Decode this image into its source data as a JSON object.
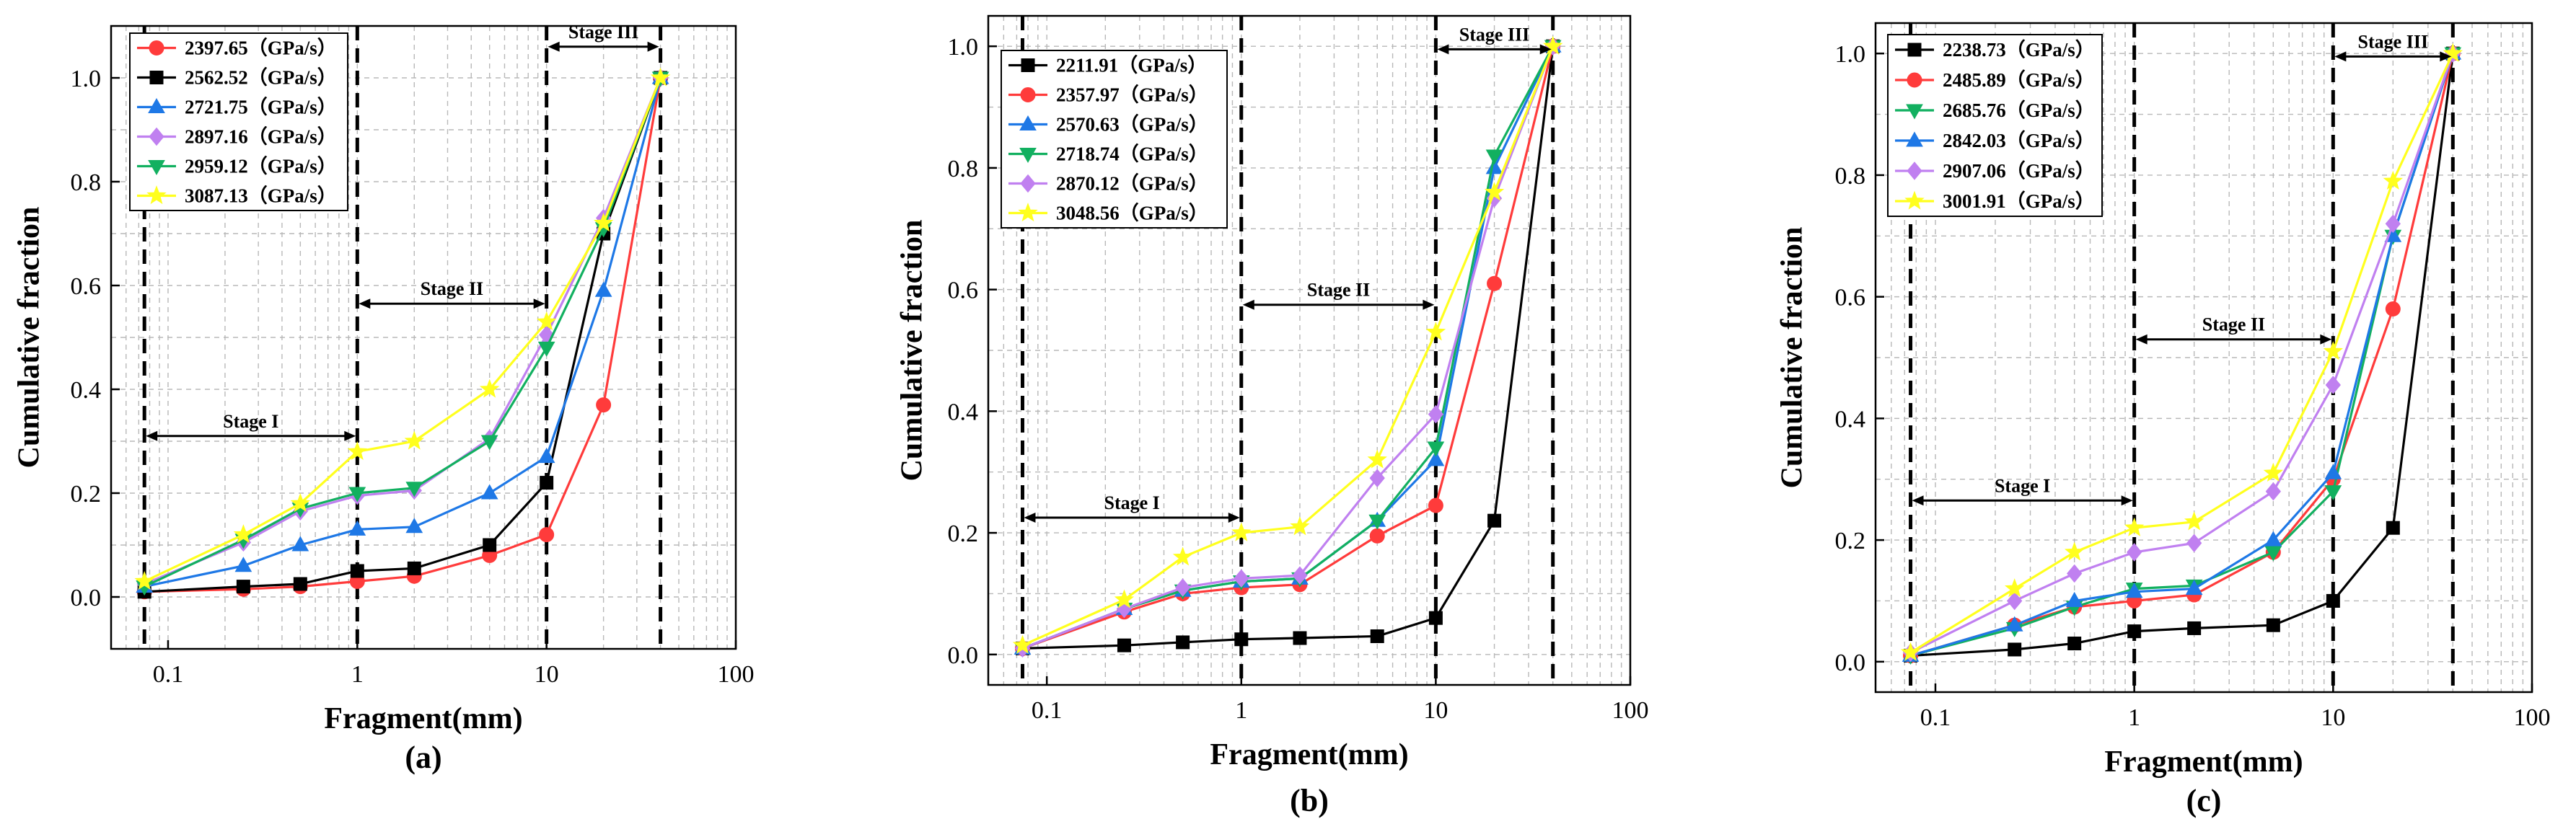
{
  "chart_data": [
    {
      "type": "line",
      "panel": "(a)",
      "xscale": "log",
      "xlim": [
        0.05,
        100
      ],
      "ylim": [
        -0.1,
        1.1
      ],
      "xticks": [
        0.1,
        1,
        10,
        100
      ],
      "xtick_labels": [
        "0.1",
        "1",
        "10",
        "100"
      ],
      "yticks": [
        0.0,
        0.2,
        0.4,
        0.6,
        0.8,
        1.0
      ],
      "ytick_labels": [
        "0.0",
        "0.2",
        "0.4",
        "0.6",
        "0.8",
        "1.0"
      ],
      "xlabel": "Fragment(mm)",
      "ylabel": "Cumulative fraction",
      "legend_position": "top-left",
      "x": [
        0.075,
        0.25,
        0.5,
        1,
        2,
        5,
        10,
        20,
        40
      ],
      "boundaries": [
        0.075,
        1,
        10,
        40
      ],
      "stages": [
        {
          "label": "Stage I",
          "from": 0.075,
          "to": 1,
          "y": 0.31
        },
        {
          "label": "Stage II",
          "from": 1,
          "to": 10,
          "y": 0.565
        },
        {
          "label": "Stage III",
          "from": 10,
          "to": 40,
          "y": 1.06
        }
      ],
      "series": [
        {
          "name": "2397.65（GPa/s）",
          "color": "#ff3b3b",
          "marker": "circle",
          "values": [
            0.01,
            0.015,
            0.02,
            0.03,
            0.04,
            0.08,
            0.12,
            0.37,
            1.0
          ]
        },
        {
          "name": "2562.52（GPa/s）",
          "color": "#000000",
          "marker": "square",
          "values": [
            0.01,
            0.02,
            0.025,
            0.05,
            0.055,
            0.1,
            0.22,
            0.7,
            1.0
          ]
        },
        {
          "name": "2721.75（GPa/s）",
          "color": "#1e78e6",
          "marker": "triangle-up",
          "values": [
            0.02,
            0.06,
            0.1,
            0.13,
            0.135,
            0.2,
            0.27,
            0.59,
            1.0
          ]
        },
        {
          "name": "2897.16（GPa/s）",
          "color": "#c080f0",
          "marker": "diamond",
          "values": [
            0.025,
            0.105,
            0.165,
            0.195,
            0.205,
            0.305,
            0.505,
            0.73,
            1.0
          ]
        },
        {
          "name": "2959.12（GPa/s）",
          "color": "#12b060",
          "marker": "triangle-down",
          "values": [
            0.02,
            0.11,
            0.17,
            0.2,
            0.21,
            0.3,
            0.48,
            0.71,
            1.0
          ]
        },
        {
          "name": "3087.13（GPa/s）",
          "color": "#ffff1e",
          "marker": "star",
          "values": [
            0.03,
            0.12,
            0.18,
            0.28,
            0.3,
            0.4,
            0.53,
            0.72,
            1.0
          ]
        }
      ]
    },
    {
      "type": "line",
      "panel": "(b)",
      "xscale": "log",
      "xlim": [
        0.05,
        100
      ],
      "ylim": [
        -0.05,
        1.05
      ],
      "xticks": [
        0.1,
        1,
        10,
        100
      ],
      "xtick_labels": [
        "0.1",
        "1",
        "10",
        "100"
      ],
      "yticks": [
        0.0,
        0.2,
        0.4,
        0.6,
        0.8,
        1.0
      ],
      "ytick_labels": [
        "0.0",
        "0.2",
        "0.4",
        "0.6",
        "0.8",
        "1.0"
      ],
      "xlabel": "Fragment(mm)",
      "ylabel": "Cumulative fraction",
      "legend_position": "top-left",
      "x": [
        0.075,
        0.25,
        0.5,
        1,
        2,
        5,
        10,
        20,
        40
      ],
      "boundaries": [
        0.075,
        1,
        10,
        40
      ],
      "stages": [
        {
          "label": "Stage I",
          "from": 0.075,
          "to": 1,
          "y": 0.225
        },
        {
          "label": "Stage II",
          "from": 1,
          "to": 10,
          "y": 0.575
        },
        {
          "label": "Stage III",
          "from": 10,
          "to": 40,
          "y": 0.995
        }
      ],
      "series": [
        {
          "name": "2211.91（GPa/s）",
          "color": "#000000",
          "marker": "square",
          "values": [
            0.01,
            0.015,
            0.02,
            0.025,
            0.027,
            0.03,
            0.06,
            0.22,
            1.0
          ]
        },
        {
          "name": "2357.97（GPa/s）",
          "color": "#ff3b3b",
          "marker": "circle",
          "values": [
            0.01,
            0.07,
            0.1,
            0.11,
            0.115,
            0.195,
            0.245,
            0.61,
            1.0
          ]
        },
        {
          "name": "2570.63（GPa/s）",
          "color": "#1e78e6",
          "marker": "triangle-up",
          "values": [
            0.01,
            0.075,
            0.105,
            0.12,
            0.125,
            0.22,
            0.32,
            0.8,
            1.0
          ]
        },
        {
          "name": "2718.74（GPa/s）",
          "color": "#12b060",
          "marker": "triangle-down",
          "values": [
            0.01,
            0.075,
            0.105,
            0.12,
            0.125,
            0.22,
            0.34,
            0.82,
            1.0
          ]
        },
        {
          "name": "2870.12（GPa/s）",
          "color": "#c080f0",
          "marker": "diamond",
          "values": [
            0.01,
            0.075,
            0.11,
            0.125,
            0.13,
            0.29,
            0.395,
            0.75,
            1.0
          ]
        },
        {
          "name": "3048.56（GPa/s）",
          "color": "#ffff1e",
          "marker": "star",
          "values": [
            0.015,
            0.09,
            0.16,
            0.2,
            0.21,
            0.32,
            0.53,
            0.76,
            1.0
          ]
        }
      ]
    },
    {
      "type": "line",
      "panel": "(c)",
      "xscale": "log",
      "xlim": [
        0.05,
        100
      ],
      "ylim": [
        -0.05,
        1.05
      ],
      "xticks": [
        0.1,
        1,
        10,
        100
      ],
      "xtick_labels": [
        "0.1",
        "1",
        "10",
        "100"
      ],
      "yticks": [
        0.0,
        0.2,
        0.4,
        0.6,
        0.8,
        1.0
      ],
      "ytick_labels": [
        "0.0",
        "0.2",
        "0.4",
        "0.6",
        "0.8",
        "1.0"
      ],
      "xlabel": "Fragment(mm)",
      "ylabel": "Cumulative fraction",
      "legend_position": "top-left",
      "x": [
        0.075,
        0.25,
        0.5,
        1,
        2,
        5,
        10,
        20,
        40
      ],
      "boundaries": [
        0.075,
        1,
        10,
        40
      ],
      "stages": [
        {
          "label": "Stage I",
          "from": 0.075,
          "to": 1,
          "y": 0.265
        },
        {
          "label": "Stage II",
          "from": 1,
          "to": 10,
          "y": 0.53
        },
        {
          "label": "Stage III",
          "from": 10,
          "to": 40,
          "y": 0.995
        }
      ],
      "series": [
        {
          "name": "2238.73（GPa/s）",
          "color": "#000000",
          "marker": "square",
          "values": [
            0.01,
            0.02,
            0.03,
            0.05,
            0.055,
            0.06,
            0.1,
            0.22,
            1.0
          ]
        },
        {
          "name": "2485.89（GPa/s）",
          "color": "#ff3b3b",
          "marker": "circle",
          "values": [
            0.01,
            0.06,
            0.09,
            0.1,
            0.11,
            0.18,
            0.3,
            0.58,
            1.0
          ]
        },
        {
          "name": "2685.76（GPa/s）",
          "color": "#12b060",
          "marker": "triangle-down",
          "values": [
            0.01,
            0.055,
            0.09,
            0.12,
            0.125,
            0.18,
            0.28,
            0.7,
            1.0
          ]
        },
        {
          "name": "2842.03（GPa/s）",
          "color": "#1e78e6",
          "marker": "triangle-up",
          "values": [
            0.01,
            0.06,
            0.1,
            0.115,
            0.12,
            0.2,
            0.31,
            0.7,
            1.0
          ]
        },
        {
          "name": "2907.06（GPa/s）",
          "color": "#c080f0",
          "marker": "diamond",
          "values": [
            0.015,
            0.1,
            0.145,
            0.18,
            0.195,
            0.28,
            0.455,
            0.72,
            1.0
          ]
        },
        {
          "name": "3001.91（GPa/s）",
          "color": "#ffff1e",
          "marker": "star",
          "values": [
            0.015,
            0.12,
            0.18,
            0.22,
            0.23,
            0.31,
            0.51,
            0.79,
            1.0
          ]
        }
      ]
    }
  ]
}
